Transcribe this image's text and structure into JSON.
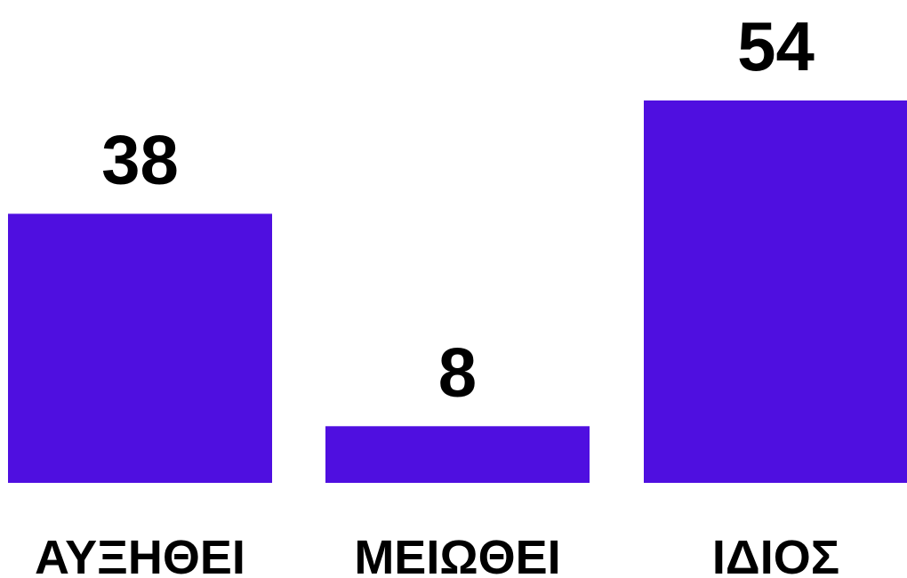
{
  "chart_data": {
    "type": "bar",
    "categories": [
      "ΑΥΞΗΘΕΙ",
      "ΜΕΙΩΘΕΙ",
      "ΙΔΙΟΣ"
    ],
    "values": [
      38,
      8,
      54
    ],
    "data_labels": [
      "38",
      "8",
      "54"
    ],
    "title": "",
    "xlabel": "",
    "ylabel": "",
    "ylim": [
      0,
      54
    ],
    "grid": false,
    "legend": "none",
    "colors": {
      "bar": "#4f0fe0",
      "text": "#000000",
      "background": "#ffffff"
    }
  }
}
